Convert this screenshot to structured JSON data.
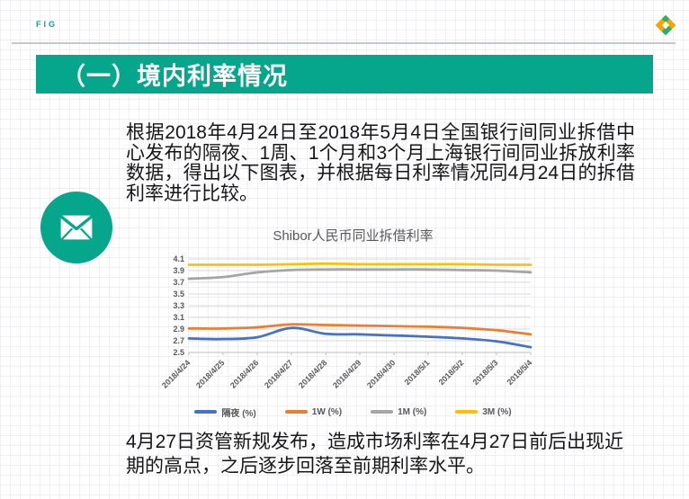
{
  "page": {
    "watermark": "FIG"
  },
  "header": {
    "title": "（一）境内利率情况"
  },
  "paragraphs": {
    "intro": "根据2018年4月24日至2018年5月4日全国银行间同业拆借中心发布的隔夜、1周、1个月和3个月上海银行间同业拆放利率数据，得出以下图表，并根据每日利率情况同4月24日的拆借利率进行比较。",
    "conclusion": "4月27日资管新规发布，造成市场利率在4月27日前后出现近期的高点，之后逐步回落至前期利率水平。"
  },
  "icons": {
    "top_right_logo": "pinwheel-icon",
    "badge": "envelope-icon"
  },
  "colors": {
    "accent_teal": "#06A68C",
    "rule_gray": "#C7C7C7",
    "logo_green": "#2EAE66",
    "logo_orange": "#F6A500",
    "chart_grid": "#D9D9D9",
    "chart_axis": "#BFBFBF",
    "chart_text": "#595959"
  },
  "chart_data": {
    "type": "line",
    "title": "Shibor人民币同业拆借利率",
    "categories": [
      "2018/4/24",
      "2018/4/25",
      "2018/4/26",
      "2018/4/27",
      "2018/4/28",
      "2018/4/29",
      "2018/4/30",
      "2018/5/1",
      "2018/5/2",
      "2018/5/3",
      "2018/5/4"
    ],
    "series": [
      {
        "name": "隔夜 (%)",
        "color": "#4472C4",
        "values": [
          2.74,
          2.73,
          2.76,
          2.92,
          2.82,
          2.81,
          2.79,
          2.77,
          2.74,
          2.69,
          2.59
        ]
      },
      {
        "name": "1W (%)",
        "color": "#ED7D31",
        "values": [
          2.91,
          2.91,
          2.93,
          2.98,
          2.97,
          2.96,
          2.95,
          2.94,
          2.92,
          2.88,
          2.81
        ]
      },
      {
        "name": "1M (%)",
        "color": "#A5A5A5",
        "values": [
          3.76,
          3.79,
          3.87,
          3.91,
          3.92,
          3.92,
          3.92,
          3.92,
          3.91,
          3.9,
          3.87
        ]
      },
      {
        "name": "3M (%)",
        "color": "#FFC000",
        "values": [
          4.0,
          4.0,
          4.0,
          4.01,
          4.02,
          4.01,
          4.01,
          4.01,
          4.01,
          4.0,
          4.0
        ]
      }
    ],
    "xlabel": "",
    "ylabel": "",
    "ylim": [
      2.5,
      4.1
    ],
    "ytick_step": 0.2,
    "grid": true,
    "legend_position": "bottom",
    "x_label_rotation": -45
  }
}
